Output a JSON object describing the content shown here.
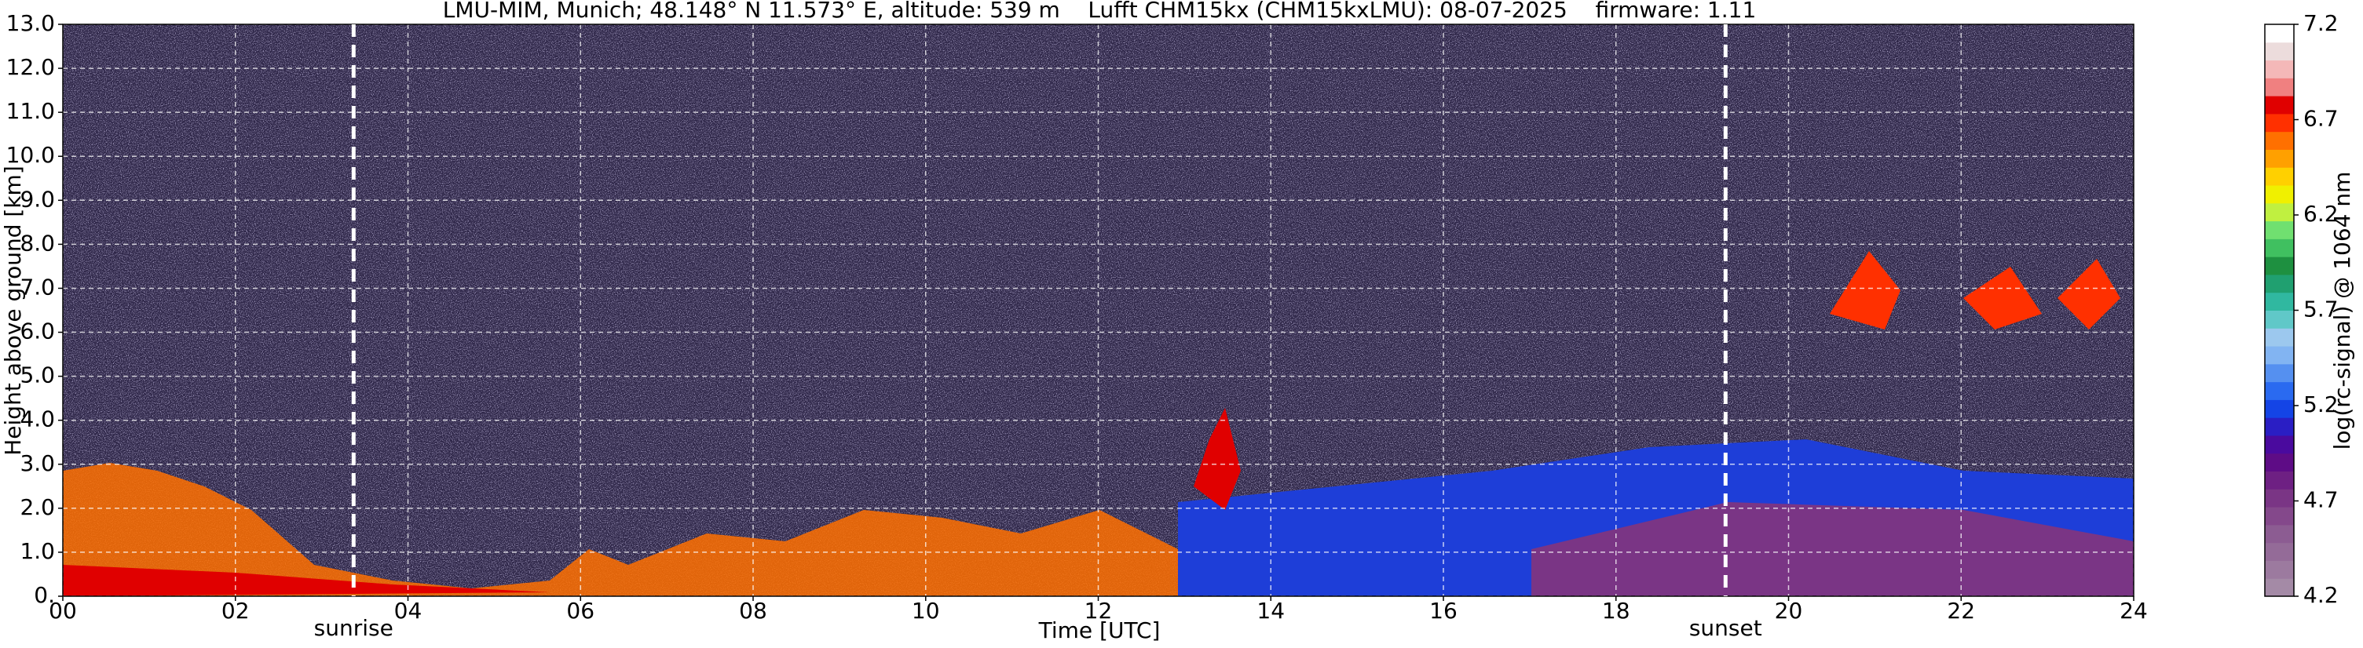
{
  "chart_data": {
    "type": "heatmap",
    "title": "LMU-MIM, Munich; 48.148° N 11.573° E, altitude: 539 m    Lufft CHM15kx (CHM15kxLMU): 08-07-2025    firmware: 1.11",
    "x_label": "Time [UTC]",
    "y_label": "Height above ground [km]",
    "colorbar_label": "log(rc-signal) @ 1064 nm",
    "xlim": [
      0,
      24
    ],
    "xticks": [
      {
        "value": 0,
        "label": "00"
      },
      {
        "value": 2,
        "label": "02"
      },
      {
        "value": 4,
        "label": "04"
      },
      {
        "value": 6,
        "label": "06"
      },
      {
        "value": 8,
        "label": "08"
      },
      10,
      12,
      14,
      16,
      18,
      20,
      22,
      24
    ],
    "ylim": [
      0,
      13
    ],
    "yticks": [
      {
        "value": 0,
        "label": "0."
      },
      {
        "value": 1,
        "label": "1.0"
      },
      {
        "value": 2,
        "label": "2.0"
      },
      {
        "value": 3,
        "label": "3.0"
      },
      {
        "value": 4,
        "label": "4.0"
      },
      {
        "value": 5,
        "label": "5.0"
      },
      {
        "value": 6,
        "label": "6.0"
      },
      {
        "value": 7,
        "label": "7.0"
      },
      {
        "value": 8,
        "label": "8.0"
      },
      {
        "value": 9,
        "label": "9.0"
      },
      {
        "value": 10,
        "label": "10.0"
      },
      {
        "value": 11,
        "label": "11.0"
      },
      {
        "value": 12,
        "label": "12.0"
      },
      {
        "value": 13,
        "label": "13.0"
      }
    ],
    "clim": [
      4.2,
      7.2
    ],
    "cticks": [
      4.2,
      4.7,
      5.2,
      5.7,
      6.2,
      6.7,
      7.2
    ],
    "colors": [
      "#a48aa6",
      "#9c7a9f",
      "#946b98",
      "#8c5c92",
      "#84488b",
      "#7a3585",
      "#6e2083",
      "#5e0c86",
      "#4a0a9e",
      "#2a1ec4",
      "#1444e6",
      "#2a6af0",
      "#5590f0",
      "#82b4f2",
      "#9cc8ee",
      "#60c8c8",
      "#30b8a0",
      "#20a070",
      "#1e9040",
      "#40c060",
      "#70e070",
      "#c0f040",
      "#f0f000",
      "#ffd000",
      "#ffa000",
      "#ff7000",
      "#ff3000",
      "#e00000",
      "#f08080",
      "#f4b8b8",
      "#ecdcdc",
      "#ffffff"
    ],
    "grid": true,
    "annotations": [
      {
        "text": "sunrise",
        "x": 3.37
      },
      {
        "text": "sunset",
        "x": 19.27
      }
    ]
  }
}
